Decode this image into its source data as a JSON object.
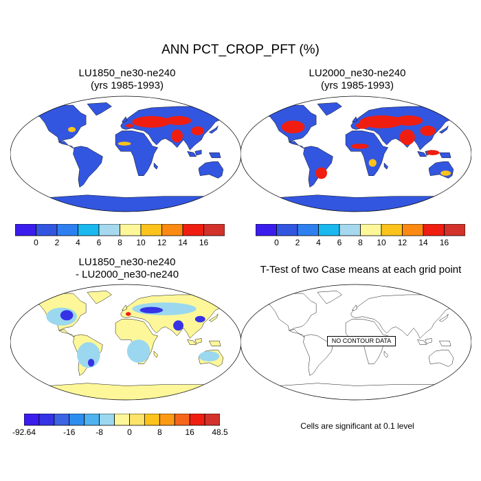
{
  "title": "ANN PCT_CROP_PFT (%)",
  "panels": {
    "p1": {
      "line1": "LU1850_ne30-ne240",
      "line2": "(yrs 1985-1993)"
    },
    "p2": {
      "line1": "LU2000_ne30-ne240",
      "line2": "(yrs 1985-1993)"
    },
    "p3": {
      "line1": "LU1850_ne30-ne240",
      "line2": "- LU2000_ne30-ne240"
    },
    "p4": {
      "line1": "T-Test of two Case means at each grid point"
    }
  },
  "no_data_label": "NO CONTOUR DATA",
  "significance_note": "Cells are significant at 0.1 level",
  "colorbar_abs": {
    "colors": [
      "#3a1dec",
      "#3356e0",
      "#2e80f0",
      "#1ab8ee",
      "#a6d8ee",
      "#fdf79a",
      "#fdc31d",
      "#fc8a12",
      "#ef1e10",
      "#d2322b"
    ],
    "ticks": [
      "0",
      "2",
      "4",
      "6",
      "8",
      "10",
      "12",
      "14",
      "16"
    ]
  },
  "colorbar_diff": {
    "colors": [
      "#3a1dec",
      "#3533e5",
      "#3d64e2",
      "#2e8ef0",
      "#4fb2f0",
      "#9bd8ef",
      "#fdf79a",
      "#fde36a",
      "#fdc31d",
      "#fc9a14",
      "#f5661a",
      "#ef1e10",
      "#d2322b"
    ],
    "ticks": [
      "-92.64",
      "-16",
      "-8",
      "0",
      "8",
      "16",
      "48.5"
    ]
  },
  "chart_data": {
    "type": "map",
    "variable": "PCT_CROP_PFT",
    "units": "%",
    "season": "ANN",
    "panels": [
      {
        "name": "LU1850_ne30-ne240",
        "years": "1985-1993",
        "levels": [
          0,
          2,
          4,
          6,
          8,
          10,
          12,
          14,
          16
        ]
      },
      {
        "name": "LU2000_ne30-ne240",
        "years": "1985-1993",
        "levels": [
          0,
          2,
          4,
          6,
          8,
          10,
          12,
          14,
          16
        ]
      },
      {
        "name": "LU1850_ne30-ne240 - LU2000_ne30-ne240",
        "levels_labeled": [
          -92.64,
          -16,
          -8,
          0,
          8,
          16,
          48.5
        ]
      },
      {
        "name": "T-Test of two Case means at each grid point",
        "significance": 0.1
      }
    ]
  }
}
